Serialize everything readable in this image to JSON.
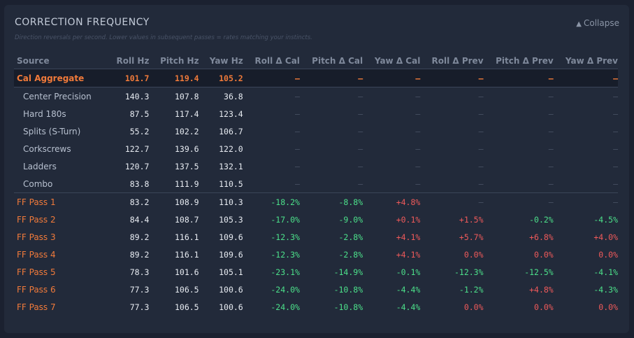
{
  "header": {
    "title": "CORRECTION FREQUENCY",
    "subtitle": "Direction reversals per second. Lower values in subsequent passes = rates matching your instincts.",
    "collapse_label": "Collapse",
    "collapse_icon": "▲"
  },
  "colors": {
    "accent": "#f07a3a",
    "improve": "#4ce08a",
    "worse": "#f05a5a",
    "panel": "#222a3a"
  },
  "table": {
    "columns": [
      "Source",
      "Roll Hz",
      "Pitch Hz",
      "Yaw Hz",
      "Roll Δ Cal",
      "Pitch Δ Cal",
      "Yaw Δ Cal",
      "Roll Δ Prev",
      "Pitch Δ Prev",
      "Yaw Δ Prev"
    ],
    "rows": [
      {
        "kind": "agg",
        "cells": [
          "Cal Aggregate",
          "101.7",
          "119.4",
          "105.2",
          "—",
          "—",
          "—",
          "—",
          "—",
          "—"
        ]
      },
      {
        "kind": "cal",
        "cells": [
          "Center Precision",
          "140.3",
          "107.8",
          "36.8",
          "—",
          "—",
          "—",
          "—",
          "—",
          "—"
        ]
      },
      {
        "kind": "cal",
        "cells": [
          "Hard 180s",
          "87.5",
          "117.4",
          "123.4",
          "—",
          "—",
          "—",
          "—",
          "—",
          "—"
        ]
      },
      {
        "kind": "cal",
        "cells": [
          "Splits (S-Turn)",
          "55.2",
          "102.2",
          "106.7",
          "—",
          "—",
          "—",
          "—",
          "—",
          "—"
        ]
      },
      {
        "kind": "cal",
        "cells": [
          "Corkscrews",
          "122.7",
          "139.6",
          "122.0",
          "—",
          "—",
          "—",
          "—",
          "—",
          "—"
        ]
      },
      {
        "kind": "cal",
        "cells": [
          "Ladders",
          "120.7",
          "137.5",
          "132.1",
          "—",
          "—",
          "—",
          "—",
          "—",
          "—"
        ]
      },
      {
        "kind": "cal",
        "cells": [
          "Combo",
          "83.8",
          "111.9",
          "110.5",
          "—",
          "—",
          "—",
          "—",
          "—",
          "—"
        ]
      },
      {
        "kind": "ff",
        "cells": [
          "FF Pass 1",
          "83.2",
          "108.9",
          "110.3",
          "-18.2%",
          "-8.8%",
          "+4.8%",
          "—",
          "—",
          "—"
        ]
      },
      {
        "kind": "ff",
        "cells": [
          "FF Pass 2",
          "84.4",
          "108.7",
          "105.3",
          "-17.0%",
          "-9.0%",
          "+0.1%",
          "+1.5%",
          "-0.2%",
          "-4.5%"
        ]
      },
      {
        "kind": "ff",
        "cells": [
          "FF Pass 3",
          "89.2",
          "116.1",
          "109.6",
          "-12.3%",
          "-2.8%",
          "+4.1%",
          "+5.7%",
          "+6.8%",
          "+4.0%"
        ]
      },
      {
        "kind": "ff",
        "cells": [
          "FF Pass 4",
          "89.2",
          "116.1",
          "109.6",
          "-12.3%",
          "-2.8%",
          "+4.1%",
          "0.0%",
          "0.0%",
          "0.0%"
        ]
      },
      {
        "kind": "ff",
        "cells": [
          "FF Pass 5",
          "78.3",
          "101.6",
          "105.1",
          "-23.1%",
          "-14.9%",
          "-0.1%",
          "-12.3%",
          "-12.5%",
          "-4.1%"
        ]
      },
      {
        "kind": "ff",
        "cells": [
          "FF Pass 6",
          "77.3",
          "106.5",
          "100.6",
          "-24.0%",
          "-10.8%",
          "-4.4%",
          "-1.2%",
          "+4.8%",
          "-4.3%"
        ]
      },
      {
        "kind": "ff",
        "cells": [
          "FF Pass 7",
          "77.3",
          "106.5",
          "100.6",
          "-24.0%",
          "-10.8%",
          "-4.4%",
          "0.0%",
          "0.0%",
          "0.0%"
        ]
      }
    ]
  }
}
